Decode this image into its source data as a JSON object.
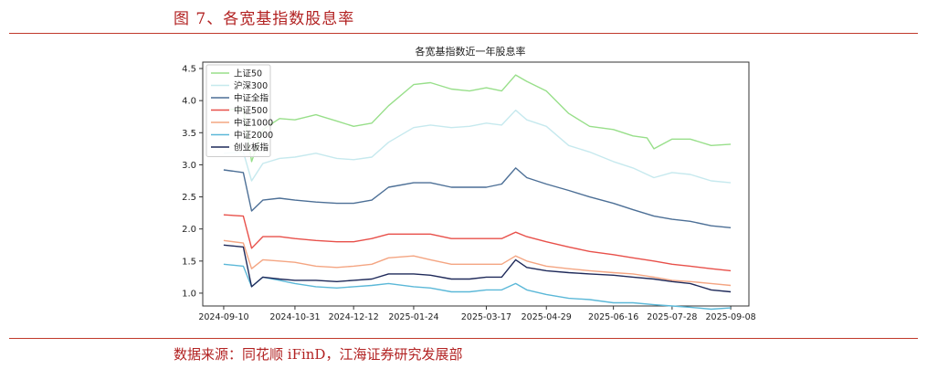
{
  "header": {
    "figure_title": "图 7、各宽基指数股息率"
  },
  "footer": {
    "source": "数据来源：同花顺 iFinD，江海证券研究发展部"
  },
  "chart_data": {
    "type": "line",
    "title": "各宽基指数近一年股息率",
    "xlabel": "",
    "ylabel": "",
    "ylim": [
      0.8,
      4.6
    ],
    "xlim": [
      "2024-08-26",
      "2025-09-21"
    ],
    "yticks": [
      1.0,
      1.5,
      2.0,
      2.5,
      3.0,
      3.5,
      4.0,
      4.5
    ],
    "ytick_labels": [
      "1.0",
      "1.5",
      "2.0",
      "2.5",
      "3.0",
      "3.5",
      "4.0",
      "4.5"
    ],
    "xticks": [
      "2024-09-10",
      "2024-10-31",
      "2024-12-12",
      "2025-01-24",
      "2025-03-17",
      "2025-04-29",
      "2025-06-16",
      "2025-07-28",
      "2025-09-08"
    ],
    "legend_position": "top-left",
    "grid": false,
    "series": [
      {
        "name": "上证50",
        "color": "#98df8a",
        "points": [
          [
            "2024-09-10",
            3.85
          ],
          [
            "2024-09-24",
            3.88
          ],
          [
            "2024-09-30",
            3.05
          ],
          [
            "2024-10-08",
            3.55
          ],
          [
            "2024-10-20",
            3.72
          ],
          [
            "2024-10-31",
            3.7
          ],
          [
            "2024-11-15",
            3.78
          ],
          [
            "2024-11-30",
            3.68
          ],
          [
            "2024-12-12",
            3.6
          ],
          [
            "2024-12-25",
            3.65
          ],
          [
            "2025-01-06",
            3.92
          ],
          [
            "2025-01-24",
            4.25
          ],
          [
            "2025-02-05",
            4.28
          ],
          [
            "2025-02-20",
            4.18
          ],
          [
            "2025-03-05",
            4.15
          ],
          [
            "2025-03-17",
            4.2
          ],
          [
            "2025-03-28",
            4.15
          ],
          [
            "2025-04-07",
            4.4
          ],
          [
            "2025-04-15",
            4.3
          ],
          [
            "2025-04-29",
            4.15
          ],
          [
            "2025-05-15",
            3.8
          ],
          [
            "2025-05-30",
            3.6
          ],
          [
            "2025-06-16",
            3.55
          ],
          [
            "2025-06-30",
            3.45
          ],
          [
            "2025-07-10",
            3.42
          ],
          [
            "2025-07-15",
            3.25
          ],
          [
            "2025-07-28",
            3.4
          ],
          [
            "2025-08-10",
            3.4
          ],
          [
            "2025-08-25",
            3.3
          ],
          [
            "2025-09-08",
            3.32
          ]
        ]
      },
      {
        "name": "沪深300",
        "color": "#c6e9ee",
        "points": [
          [
            "2024-09-10",
            3.18
          ],
          [
            "2024-09-24",
            3.2
          ],
          [
            "2024-09-30",
            2.75
          ],
          [
            "2024-10-08",
            3.02
          ],
          [
            "2024-10-20",
            3.1
          ],
          [
            "2024-10-31",
            3.12
          ],
          [
            "2024-11-15",
            3.18
          ],
          [
            "2024-11-30",
            3.1
          ],
          [
            "2024-12-12",
            3.08
          ],
          [
            "2024-12-25",
            3.12
          ],
          [
            "2025-01-06",
            3.35
          ],
          [
            "2025-01-24",
            3.58
          ],
          [
            "2025-02-05",
            3.62
          ],
          [
            "2025-02-20",
            3.58
          ],
          [
            "2025-03-05",
            3.6
          ],
          [
            "2025-03-17",
            3.65
          ],
          [
            "2025-03-28",
            3.62
          ],
          [
            "2025-04-07",
            3.85
          ],
          [
            "2025-04-15",
            3.7
          ],
          [
            "2025-04-29",
            3.6
          ],
          [
            "2025-05-15",
            3.3
          ],
          [
            "2025-05-30",
            3.2
          ],
          [
            "2025-06-16",
            3.05
          ],
          [
            "2025-06-30",
            2.95
          ],
          [
            "2025-07-15",
            2.8
          ],
          [
            "2025-07-28",
            2.88
          ],
          [
            "2025-08-10",
            2.85
          ],
          [
            "2025-08-25",
            2.75
          ],
          [
            "2025-09-08",
            2.72
          ]
        ]
      },
      {
        "name": "中证全指",
        "color": "#4c6f96",
        "points": [
          [
            "2024-09-10",
            2.92
          ],
          [
            "2024-09-24",
            2.88
          ],
          [
            "2024-09-30",
            2.28
          ],
          [
            "2024-10-08",
            2.45
          ],
          [
            "2024-10-20",
            2.48
          ],
          [
            "2024-10-31",
            2.45
          ],
          [
            "2024-11-15",
            2.42
          ],
          [
            "2024-11-30",
            2.4
          ],
          [
            "2024-12-12",
            2.4
          ],
          [
            "2024-12-25",
            2.45
          ],
          [
            "2025-01-06",
            2.65
          ],
          [
            "2025-01-24",
            2.72
          ],
          [
            "2025-02-05",
            2.72
          ],
          [
            "2025-02-20",
            2.65
          ],
          [
            "2025-03-05",
            2.65
          ],
          [
            "2025-03-17",
            2.65
          ],
          [
            "2025-03-28",
            2.7
          ],
          [
            "2025-04-07",
            2.95
          ],
          [
            "2025-04-15",
            2.8
          ],
          [
            "2025-04-29",
            2.7
          ],
          [
            "2025-05-15",
            2.6
          ],
          [
            "2025-05-30",
            2.5
          ],
          [
            "2025-06-16",
            2.4
          ],
          [
            "2025-06-30",
            2.3
          ],
          [
            "2025-07-15",
            2.2
          ],
          [
            "2025-07-28",
            2.15
          ],
          [
            "2025-08-10",
            2.12
          ],
          [
            "2025-08-25",
            2.05
          ],
          [
            "2025-09-08",
            2.02
          ]
        ]
      },
      {
        "name": "中证500",
        "color": "#e8504a",
        "points": [
          [
            "2024-09-10",
            2.22
          ],
          [
            "2024-09-24",
            2.2
          ],
          [
            "2024-09-30",
            1.7
          ],
          [
            "2024-10-08",
            1.88
          ],
          [
            "2024-10-20",
            1.88
          ],
          [
            "2024-10-31",
            1.85
          ],
          [
            "2024-11-15",
            1.82
          ],
          [
            "2024-11-30",
            1.8
          ],
          [
            "2024-12-12",
            1.8
          ],
          [
            "2024-12-25",
            1.85
          ],
          [
            "2025-01-06",
            1.92
          ],
          [
            "2025-01-24",
            1.92
          ],
          [
            "2025-02-05",
            1.92
          ],
          [
            "2025-02-20",
            1.85
          ],
          [
            "2025-03-05",
            1.85
          ],
          [
            "2025-03-17",
            1.85
          ],
          [
            "2025-03-28",
            1.85
          ],
          [
            "2025-04-07",
            1.95
          ],
          [
            "2025-04-15",
            1.88
          ],
          [
            "2025-04-29",
            1.8
          ],
          [
            "2025-05-15",
            1.72
          ],
          [
            "2025-05-30",
            1.65
          ],
          [
            "2025-06-16",
            1.6
          ],
          [
            "2025-06-30",
            1.55
          ],
          [
            "2025-07-15",
            1.5
          ],
          [
            "2025-07-28",
            1.45
          ],
          [
            "2025-08-10",
            1.42
          ],
          [
            "2025-08-25",
            1.38
          ],
          [
            "2025-09-08",
            1.35
          ]
        ]
      },
      {
        "name": "中证1000",
        "color": "#f4a582",
        "points": [
          [
            "2024-09-10",
            1.82
          ],
          [
            "2024-09-24",
            1.78
          ],
          [
            "2024-09-30",
            1.38
          ],
          [
            "2024-10-08",
            1.52
          ],
          [
            "2024-10-20",
            1.5
          ],
          [
            "2024-10-31",
            1.48
          ],
          [
            "2024-11-15",
            1.42
          ],
          [
            "2024-11-30",
            1.4
          ],
          [
            "2024-12-12",
            1.42
          ],
          [
            "2024-12-25",
            1.45
          ],
          [
            "2025-01-06",
            1.55
          ],
          [
            "2025-01-24",
            1.58
          ],
          [
            "2025-02-05",
            1.52
          ],
          [
            "2025-02-20",
            1.45
          ],
          [
            "2025-03-05",
            1.45
          ],
          [
            "2025-03-17",
            1.45
          ],
          [
            "2025-03-28",
            1.45
          ],
          [
            "2025-04-07",
            1.58
          ],
          [
            "2025-04-15",
            1.5
          ],
          [
            "2025-04-29",
            1.42
          ],
          [
            "2025-05-15",
            1.38
          ],
          [
            "2025-05-30",
            1.35
          ],
          [
            "2025-06-16",
            1.32
          ],
          [
            "2025-06-30",
            1.3
          ],
          [
            "2025-07-15",
            1.25
          ],
          [
            "2025-07-28",
            1.2
          ],
          [
            "2025-08-10",
            1.18
          ],
          [
            "2025-08-25",
            1.15
          ],
          [
            "2025-09-08",
            1.12
          ]
        ]
      },
      {
        "name": "中证2000",
        "color": "#5bb8d8",
        "points": [
          [
            "2024-09-10",
            1.45
          ],
          [
            "2024-09-24",
            1.42
          ],
          [
            "2024-09-30",
            1.1
          ],
          [
            "2024-10-08",
            1.25
          ],
          [
            "2024-10-20",
            1.2
          ],
          [
            "2024-10-31",
            1.15
          ],
          [
            "2024-11-15",
            1.1
          ],
          [
            "2024-11-30",
            1.08
          ],
          [
            "2024-12-12",
            1.1
          ],
          [
            "2024-12-25",
            1.12
          ],
          [
            "2025-01-06",
            1.15
          ],
          [
            "2025-01-24",
            1.1
          ],
          [
            "2025-02-05",
            1.08
          ],
          [
            "2025-02-20",
            1.02
          ],
          [
            "2025-03-05",
            1.02
          ],
          [
            "2025-03-17",
            1.05
          ],
          [
            "2025-03-28",
            1.05
          ],
          [
            "2025-04-07",
            1.15
          ],
          [
            "2025-04-15",
            1.05
          ],
          [
            "2025-04-29",
            0.98
          ],
          [
            "2025-05-15",
            0.92
          ],
          [
            "2025-05-30",
            0.9
          ],
          [
            "2025-06-16",
            0.85
          ],
          [
            "2025-06-30",
            0.85
          ],
          [
            "2025-07-15",
            0.82
          ],
          [
            "2025-07-28",
            0.8
          ],
          [
            "2025-08-10",
            0.78
          ],
          [
            "2025-08-25",
            0.75
          ],
          [
            "2025-09-08",
            0.77
          ]
        ]
      },
      {
        "name": "创业板指",
        "color": "#1f2a5a",
        "points": [
          [
            "2024-09-10",
            1.75
          ],
          [
            "2024-09-24",
            1.72
          ],
          [
            "2024-09-30",
            1.1
          ],
          [
            "2024-10-08",
            1.25
          ],
          [
            "2024-10-20",
            1.22
          ],
          [
            "2024-10-31",
            1.2
          ],
          [
            "2024-11-15",
            1.2
          ],
          [
            "2024-11-30",
            1.18
          ],
          [
            "2024-12-12",
            1.2
          ],
          [
            "2024-12-25",
            1.22
          ],
          [
            "2025-01-06",
            1.3
          ],
          [
            "2025-01-24",
            1.3
          ],
          [
            "2025-02-05",
            1.28
          ],
          [
            "2025-02-20",
            1.22
          ],
          [
            "2025-03-05",
            1.22
          ],
          [
            "2025-03-17",
            1.25
          ],
          [
            "2025-03-28",
            1.25
          ],
          [
            "2025-04-07",
            1.52
          ],
          [
            "2025-04-15",
            1.4
          ],
          [
            "2025-04-29",
            1.35
          ],
          [
            "2025-05-15",
            1.32
          ],
          [
            "2025-05-30",
            1.3
          ],
          [
            "2025-06-16",
            1.28
          ],
          [
            "2025-06-30",
            1.25
          ],
          [
            "2025-07-15",
            1.22
          ],
          [
            "2025-07-28",
            1.18
          ],
          [
            "2025-08-10",
            1.15
          ],
          [
            "2025-08-25",
            1.05
          ],
          [
            "2025-09-08",
            1.02
          ]
        ]
      }
    ]
  }
}
